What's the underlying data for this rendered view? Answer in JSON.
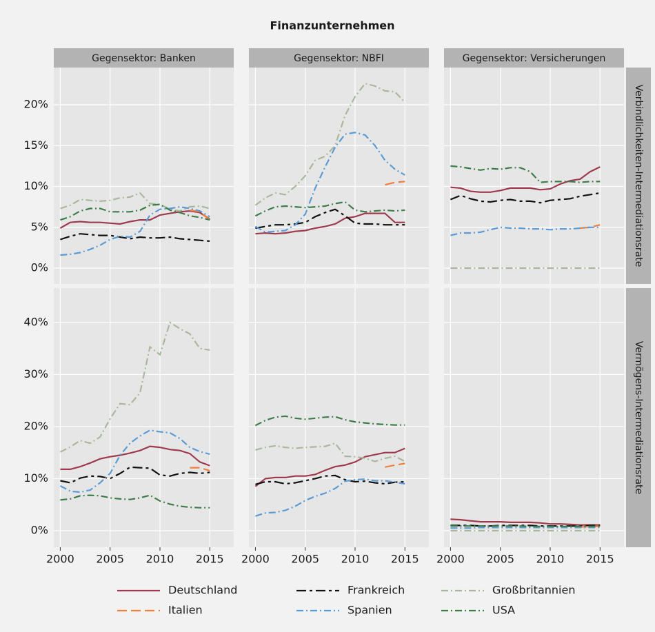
{
  "title": "Finanzunternehmen",
  "columns": [
    "Gegensektor: Banken",
    "Gegensektor: NBFI",
    "Gegensektor: Versicherungen"
  ],
  "rows": [
    "Verbindlichkeiten-Intermediationsrate",
    "Vermögens-Intermediationsrate"
  ],
  "chart_data": [
    {
      "type": "line",
      "xlim": [
        1999.35,
        2017.4
      ],
      "ylim": [
        -1.94,
        24.56
      ],
      "yticks": [
        {
          "value": 0,
          "label": "0%"
        },
        {
          "value": 5,
          "label": "5%"
        },
        {
          "value": 10,
          "label": "10%"
        },
        {
          "value": 15,
          "label": "15%"
        },
        {
          "value": 20,
          "label": "20%"
        }
      ],
      "x": [
        2000,
        2001,
        2002,
        2003,
        2004,
        2005,
        2006,
        2007,
        2008,
        2009,
        2010,
        2011,
        2012,
        2013,
        2014,
        2015
      ],
      "series": [
        {
          "name": "Deutschland",
          "color": "#9e3a4e",
          "dash": "none",
          "values": [
            4.9,
            5.6,
            5.7,
            5.6,
            5.6,
            5.5,
            5.4,
            5.7,
            5.9,
            5.9,
            6.5,
            6.7,
            6.9,
            7.0,
            6.8,
            6.0
          ]
        },
        {
          "name": "Frankreich",
          "color": "#111111",
          "dash": "14 5 4 5",
          "values": [
            3.5,
            3.9,
            4.2,
            4.1,
            4.0,
            4.0,
            3.8,
            3.6,
            3.8,
            3.7,
            3.7,
            3.8,
            3.6,
            3.5,
            3.4,
            3.3
          ]
        },
        {
          "name": "Großbritannien",
          "color": "#a9b89c",
          "dash": "10 4 2 4",
          "values": [
            7.3,
            7.7,
            8.4,
            8.3,
            8.2,
            8.3,
            8.6,
            8.7,
            9.2,
            7.9,
            7.8,
            7.2,
            7.0,
            7.5,
            7.6,
            7.3
          ]
        },
        {
          "name": "Italien",
          "color": "#f07f3c",
          "dash": "14 6",
          "values": [
            null,
            null,
            null,
            null,
            null,
            null,
            null,
            null,
            null,
            null,
            null,
            null,
            null,
            7.1,
            6.9,
            5.9
          ]
        },
        {
          "name": "Spanien",
          "color": "#5b9bd5",
          "dash": "10 4 2 4",
          "values": [
            1.6,
            1.7,
            1.9,
            2.3,
            2.8,
            3.5,
            3.9,
            3.8,
            4.5,
            6.5,
            7.2,
            7.3,
            7.5,
            7.3,
            7.0,
            6.3
          ]
        },
        {
          "name": "USA",
          "color": "#3e7d4a",
          "dash": "10 4 2 4",
          "values": [
            5.9,
            6.3,
            7.0,
            7.3,
            7.3,
            6.9,
            6.9,
            6.9,
            7.1,
            7.7,
            7.8,
            7.1,
            6.8,
            6.4,
            6.2,
            5.9
          ]
        }
      ]
    },
    {
      "type": "line",
      "xlim": [
        1999.35,
        2017.4
      ],
      "ylim": [
        -1.94,
        24.56
      ],
      "x": [
        2000,
        2001,
        2002,
        2003,
        2004,
        2005,
        2006,
        2007,
        2008,
        2009,
        2010,
        2011,
        2012,
        2013,
        2014,
        2015
      ],
      "series": [
        {
          "name": "Deutschland",
          "color": "#9e3a4e",
          "dash": "none",
          "values": [
            4.2,
            4.3,
            4.2,
            4.3,
            4.5,
            4.6,
            4.9,
            5.1,
            5.4,
            6.1,
            6.3,
            6.7,
            6.7,
            6.7,
            5.6,
            5.6
          ]
        },
        {
          "name": "Frankreich",
          "color": "#111111",
          "dash": "14 5 4 5",
          "values": [
            4.9,
            5.1,
            5.3,
            5.3,
            5.4,
            5.6,
            6.3,
            6.8,
            7.2,
            6.4,
            5.5,
            5.4,
            5.4,
            5.3,
            5.3,
            5.3
          ]
        },
        {
          "name": "Großbritannien",
          "color": "#a9b89c",
          "dash": "10 4 2 4",
          "values": [
            7.7,
            8.6,
            9.2,
            9.0,
            10.0,
            11.3,
            13.2,
            13.7,
            15.0,
            18.7,
            21.0,
            22.6,
            22.3,
            21.7,
            21.6,
            20.3
          ]
        },
        {
          "name": "Italien",
          "color": "#f07f3c",
          "dash": "14 6",
          "values": [
            null,
            null,
            null,
            null,
            null,
            null,
            null,
            null,
            null,
            null,
            null,
            null,
            null,
            10.2,
            10.5,
            10.6
          ]
        },
        {
          "name": "Spanien",
          "color": "#5b9bd5",
          "dash": "10 4 2 4",
          "values": [
            5.1,
            4.4,
            4.5,
            4.6,
            5.3,
            6.6,
            9.8,
            12.4,
            14.8,
            16.4,
            16.6,
            16.3,
            15.0,
            13.2,
            12.1,
            11.4
          ]
        },
        {
          "name": "USA",
          "color": "#3e7d4a",
          "dash": "10 4 2 4",
          "values": [
            6.4,
            7.0,
            7.5,
            7.6,
            7.5,
            7.4,
            7.5,
            7.6,
            7.9,
            8.1,
            7.1,
            6.9,
            7.0,
            7.1,
            7.0,
            7.1
          ]
        }
      ]
    },
    {
      "type": "line",
      "xlim": [
        1999.35,
        2017.4
      ],
      "ylim": [
        -1.94,
        24.56
      ],
      "x": [
        2000,
        2001,
        2002,
        2003,
        2004,
        2005,
        2006,
        2007,
        2008,
        2009,
        2010,
        2011,
        2012,
        2013,
        2014,
        2015
      ],
      "series": [
        {
          "name": "Deutschland",
          "color": "#9e3a4e",
          "dash": "none",
          "values": [
            9.9,
            9.8,
            9.4,
            9.3,
            9.3,
            9.5,
            9.8,
            9.8,
            9.8,
            9.6,
            9.7,
            10.3,
            10.7,
            10.9,
            11.8,
            12.4
          ]
        },
        {
          "name": "Frankreich",
          "color": "#111111",
          "dash": "14 5 4 5",
          "values": [
            8.4,
            8.9,
            8.5,
            8.2,
            8.1,
            8.3,
            8.4,
            8.2,
            8.2,
            8.0,
            8.3,
            8.4,
            8.5,
            8.8,
            9.0,
            9.2
          ]
        },
        {
          "name": "Großbritannien",
          "color": "#a9b89c",
          "dash": "10 4 2 4",
          "values": [
            0,
            0,
            0,
            0,
            0,
            0,
            0,
            0,
            0,
            0,
            0,
            0,
            0,
            0,
            0,
            0
          ]
        },
        {
          "name": "Italien",
          "color": "#f07f3c",
          "dash": "14 6",
          "values": [
            null,
            null,
            null,
            null,
            null,
            null,
            null,
            null,
            null,
            null,
            null,
            null,
            null,
            4.9,
            5.0,
            5.3
          ]
        },
        {
          "name": "Spanien",
          "color": "#5b9bd5",
          "dash": "10 4 2 4",
          "values": [
            4.0,
            4.3,
            4.3,
            4.4,
            4.7,
            5.0,
            4.9,
            4.9,
            4.8,
            4.8,
            4.7,
            4.8,
            4.8,
            4.9,
            5.0,
            5.0
          ]
        },
        {
          "name": "USA",
          "color": "#3e7d4a",
          "dash": "10 4 2 4",
          "values": [
            12.5,
            12.4,
            12.2,
            12.0,
            12.2,
            12.1,
            12.3,
            12.3,
            11.8,
            10.5,
            10.6,
            10.6,
            10.6,
            10.5,
            10.6,
            10.6
          ]
        }
      ]
    },
    {
      "type": "line",
      "xlim": [
        1999.35,
        2017.4
      ],
      "ylim": [
        -3.18,
        46.6
      ],
      "xticks": [
        2000,
        2005,
        2010,
        2015
      ],
      "yticks": [
        {
          "value": 0,
          "label": "0%"
        },
        {
          "value": 10,
          "label": "10%"
        },
        {
          "value": 20,
          "label": "20%"
        },
        {
          "value": 30,
          "label": "30%"
        },
        {
          "value": 40,
          "label": "40%"
        }
      ],
      "x": [
        2000,
        2001,
        2002,
        2003,
        2004,
        2005,
        2006,
        2007,
        2008,
        2009,
        2010,
        2011,
        2012,
        2013,
        2014,
        2015
      ],
      "series": [
        {
          "name": "Deutschland",
          "color": "#9e3a4e",
          "dash": "none",
          "values": [
            11.8,
            11.8,
            12.3,
            13.0,
            13.8,
            14.2,
            14.5,
            14.9,
            15.4,
            16.2,
            16.0,
            15.6,
            15.4,
            14.8,
            13.2,
            12.5
          ]
        },
        {
          "name": "Frankreich",
          "color": "#111111",
          "dash": "14 5 4 5",
          "values": [
            9.6,
            9.2,
            10.1,
            10.5,
            10.4,
            10.0,
            11.0,
            12.2,
            12.1,
            12.0,
            10.7,
            10.5,
            11.0,
            11.2,
            11.0,
            11.2
          ]
        },
        {
          "name": "Großbritannien",
          "color": "#a9b89c",
          "dash": "10 4 2 4",
          "values": [
            15.1,
            16.1,
            17.3,
            16.8,
            18.0,
            21.5,
            24.4,
            24.2,
            26.5,
            35.3,
            33.8,
            40.0,
            38.8,
            37.8,
            35.0,
            34.7
          ]
        },
        {
          "name": "Italien",
          "color": "#f07f3c",
          "dash": "14 6",
          "values": [
            null,
            null,
            null,
            null,
            null,
            null,
            null,
            null,
            null,
            null,
            null,
            null,
            null,
            12.1,
            12.1,
            11.5
          ]
        },
        {
          "name": "Spanien",
          "color": "#5b9bd5",
          "dash": "10 4 2 4",
          "values": [
            8.6,
            7.6,
            7.4,
            7.8,
            9.2,
            11.0,
            14.5,
            16.8,
            18.2,
            19.3,
            19.0,
            18.8,
            17.7,
            16.0,
            15.2,
            14.7
          ]
        },
        {
          "name": "USA",
          "color": "#3e7d4a",
          "dash": "10 4 2 4",
          "values": [
            5.9,
            6.1,
            6.7,
            6.8,
            6.7,
            6.3,
            6.1,
            6.0,
            6.3,
            6.8,
            5.7,
            5.1,
            4.7,
            4.5,
            4.4,
            4.4
          ]
        }
      ]
    },
    {
      "type": "line",
      "xlim": [
        1999.35,
        2017.4
      ],
      "ylim": [
        -3.18,
        46.6
      ],
      "xticks": [
        2000,
        2005,
        2010,
        2015
      ],
      "x": [
        2000,
        2001,
        2002,
        2003,
        2004,
        2005,
        2006,
        2007,
        2008,
        2009,
        2010,
        2011,
        2012,
        2013,
        2014,
        2015
      ],
      "series": [
        {
          "name": "Deutschland",
          "color": "#9e3a4e",
          "dash": "none",
          "values": [
            8.5,
            10.0,
            10.2,
            10.2,
            10.5,
            10.5,
            10.8,
            11.6,
            12.3,
            12.6,
            13.2,
            14.2,
            14.6,
            15.0,
            15.0,
            15.8
          ]
        },
        {
          "name": "Frankreich",
          "color": "#111111",
          "dash": "14 5 4 5",
          "values": [
            8.9,
            9.4,
            9.4,
            9.0,
            9.2,
            9.6,
            10.0,
            10.5,
            10.6,
            9.8,
            9.4,
            9.5,
            9.2,
            9.0,
            9.3,
            9.4
          ]
        },
        {
          "name": "Großbritannien",
          "color": "#a9b89c",
          "dash": "10 4 2 4",
          "values": [
            15.5,
            16.0,
            16.3,
            16.0,
            15.8,
            16.0,
            16.1,
            16.2,
            16.8,
            14.3,
            14.2,
            13.9,
            13.3,
            13.9,
            14.3,
            13.3
          ]
        },
        {
          "name": "Italien",
          "color": "#f07f3c",
          "dash": "14 6",
          "values": [
            null,
            null,
            null,
            null,
            null,
            null,
            null,
            null,
            null,
            null,
            null,
            null,
            null,
            12.2,
            12.6,
            12.9
          ]
        },
        {
          "name": "Spanien",
          "color": "#5b9bd5",
          "dash": "10 4 2 4",
          "values": [
            2.8,
            3.4,
            3.5,
            3.9,
            4.7,
            5.8,
            6.6,
            7.2,
            8.1,
            9.5,
            9.8,
            9.9,
            9.6,
            9.6,
            9.3,
            9.0
          ]
        },
        {
          "name": "USA",
          "color": "#3e7d4a",
          "dash": "10 4 2 4",
          "values": [
            20.2,
            21.2,
            21.8,
            22.0,
            21.6,
            21.4,
            21.6,
            21.8,
            21.9,
            21.3,
            20.9,
            20.7,
            20.5,
            20.4,
            20.3,
            20.3
          ]
        }
      ]
    },
    {
      "type": "line",
      "xlim": [
        1999.35,
        2017.4
      ],
      "ylim": [
        -3.18,
        46.6
      ],
      "xticks": [
        2000,
        2005,
        2010,
        2015
      ],
      "x": [
        2000,
        2001,
        2002,
        2003,
        2004,
        2005,
        2006,
        2007,
        2008,
        2009,
        2010,
        2011,
        2012,
        2013,
        2014,
        2015
      ],
      "series": [
        {
          "name": "Deutschland",
          "color": "#9e3a4e",
          "dash": "none",
          "values": [
            2.2,
            2.1,
            1.9,
            1.7,
            1.7,
            1.7,
            1.6,
            1.6,
            1.6,
            1.5,
            1.3,
            1.3,
            1.2,
            1.1,
            1.1,
            1.1
          ]
        },
        {
          "name": "Frankreich",
          "color": "#111111",
          "dash": "14 5 4 5",
          "values": [
            1.0,
            1.0,
            1.0,
            0.9,
            0.9,
            1.0,
            1.0,
            1.0,
            1.0,
            0.9,
            0.9,
            0.9,
            0.9,
            0.9,
            1.0,
            1.0
          ]
        },
        {
          "name": "Großbritannien",
          "color": "#a9b89c",
          "dash": "10 4 2 4",
          "values": [
            0,
            0,
            0,
            0,
            0,
            0,
            0,
            0,
            0,
            0,
            0,
            0,
            0,
            0,
            0,
            0
          ]
        },
        {
          "name": "Italien",
          "color": "#f07f3c",
          "dash": "14 6",
          "values": [
            null,
            null,
            null,
            null,
            null,
            null,
            null,
            null,
            null,
            null,
            null,
            null,
            null,
            0.7,
            0.8,
            0.8
          ]
        },
        {
          "name": "Spanien",
          "color": "#5b9bd5",
          "dash": "10 4 2 4",
          "values": [
            0.5,
            0.5,
            0.5,
            0.6,
            0.6,
            0.6,
            0.6,
            0.6,
            0.6,
            0.6,
            0.6,
            0.6,
            0.6,
            0.6,
            0.6,
            0.6
          ]
        },
        {
          "name": "USA",
          "color": "#3e7d4a",
          "dash": "10 4 2 4",
          "values": [
            0.9,
            0.9,
            0.9,
            0.9,
            0.9,
            0.9,
            0.9,
            0.9,
            0.8,
            0.8,
            0.8,
            0.8,
            0.8,
            0.8,
            0.8,
            0.8
          ]
        }
      ]
    }
  ]
}
